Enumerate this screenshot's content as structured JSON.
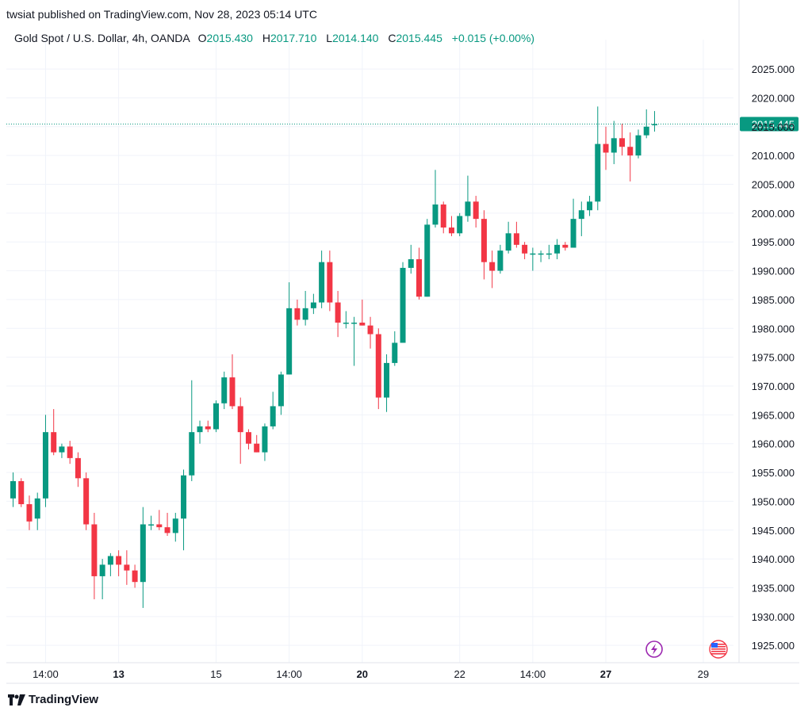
{
  "header": {
    "published": "twsiat published on TradingView.com, Nov 28, 2023 05:14 UTC"
  },
  "legend": {
    "symbol": "Gold Spot / U.S. Dollar, 4h, OANDA",
    "open_label": "O",
    "open": "2015.430",
    "high_label": "H",
    "high": "2017.710",
    "low_label": "L",
    "low": "2014.140",
    "close_label": "C",
    "close": "2015.445",
    "change": "+0.015 (+0.00%)"
  },
  "footer": {
    "brand": "TradingView"
  },
  "colors": {
    "up": "#089981",
    "down": "#f23645",
    "grid": "#f0f3fa",
    "text": "#131722",
    "price_tag": "#089981",
    "indicator_icon": "#9c27b0"
  },
  "icons": {
    "event_icon": "lightning-bolt-icon",
    "flag_icon": "us-flag-icon"
  },
  "chart_data": {
    "type": "candlestick",
    "title": "Gold Spot / U.S. Dollar, 4h, OANDA",
    "ylim": [
      1922,
      2029
    ],
    "y_ticks": [
      "2025.000",
      "2020.000",
      "2015.000",
      "2010.000",
      "2005.000",
      "2000.000",
      "1995.000",
      "1990.000",
      "1985.000",
      "1980.000",
      "1975.000",
      "1970.000",
      "1965.000",
      "1960.000",
      "1955.000",
      "1950.000",
      "1945.000",
      "1940.000",
      "1935.000",
      "1930.000",
      "1925.000"
    ],
    "x_ticks": [
      {
        "label": "14:00",
        "bar": 4,
        "bold": false
      },
      {
        "label": "13",
        "bar": 13,
        "bold": true
      },
      {
        "label": "15",
        "bar": 25,
        "bold": false
      },
      {
        "label": "14:00",
        "bar": 34,
        "bold": false
      },
      {
        "label": "20",
        "bar": 43,
        "bold": true
      },
      {
        "label": "22",
        "bar": 55,
        "bold": false
      },
      {
        "label": "14:00",
        "bar": 64,
        "bold": false
      },
      {
        "label": "27",
        "bar": 73,
        "bold": true
      },
      {
        "label": "29",
        "bar": 85,
        "bold": false
      }
    ],
    "last_price": "2015.445",
    "last_price_value": 2015.445,
    "candles": [
      [
        1950.5,
        1955.0,
        1949.0,
        1953.5
      ],
      [
        1953.5,
        1954.0,
        1949.0,
        1949.5
      ],
      [
        1949.5,
        1951.0,
        1945.0,
        1946.5
      ],
      [
        1947.0,
        1951.5,
        1945.0,
        1950.5
      ],
      [
        1950.5,
        1965.0,
        1949.0,
        1962.0
      ],
      [
        1962.0,
        1966.0,
        1958.0,
        1958.5
      ],
      [
        1958.5,
        1960.0,
        1957.5,
        1959.5
      ],
      [
        1959.5,
        1960.5,
        1956.5,
        1957.5
      ],
      [
        1957.5,
        1958.5,
        1952.5,
        1954.0
      ],
      [
        1954.0,
        1955.0,
        1945.0,
        1946.0
      ],
      [
        1946.0,
        1948.0,
        1933.0,
        1937.0
      ],
      [
        1937.0,
        1940.0,
        1933.0,
        1939.0
      ],
      [
        1939.0,
        1941.0,
        1937.0,
        1940.5
      ],
      [
        1940.5,
        1941.5,
        1937.0,
        1939.0
      ],
      [
        1939.0,
        1941.5,
        1935.5,
        1938.0
      ],
      [
        1938.0,
        1939.0,
        1935.0,
        1936.0
      ],
      [
        1936.0,
        1949.0,
        1931.5,
        1946.0
      ],
      [
        1946.0,
        1947.5,
        1945.0,
        1946.0
      ],
      [
        1946.0,
        1948.5,
        1945.0,
        1945.5
      ],
      [
        1945.5,
        1948.0,
        1944.0,
        1944.5
      ],
      [
        1944.5,
        1948.0,
        1943.0,
        1947.0
      ],
      [
        1947.0,
        1955.5,
        1941.5,
        1954.5
      ],
      [
        1954.5,
        1971.0,
        1953.5,
        1962.0
      ],
      [
        1962.0,
        1964.0,
        1960.0,
        1963.0
      ],
      [
        1963.0,
        1964.0,
        1962.0,
        1962.5
      ],
      [
        1962.5,
        1967.5,
        1962.0,
        1967.0
      ],
      [
        1967.0,
        1972.5,
        1966.0,
        1971.5
      ],
      [
        1971.5,
        1975.5,
        1966.0,
        1966.5
      ],
      [
        1966.5,
        1968.0,
        1956.5,
        1962.0
      ],
      [
        1962.0,
        1962.5,
        1959.0,
        1960.0
      ],
      [
        1960.0,
        1961.5,
        1958.5,
        1958.5
      ],
      [
        1958.5,
        1963.5,
        1957.0,
        1963.0
      ],
      [
        1963.0,
        1969.0,
        1962.5,
        1966.5
      ],
      [
        1966.5,
        1972.5,
        1965.0,
        1972.0
      ],
      [
        1972.0,
        1988.0,
        1972.0,
        1983.5
      ],
      [
        1983.5,
        1985.0,
        1980.5,
        1981.5
      ],
      [
        1981.5,
        1986.5,
        1980.5,
        1983.5
      ],
      [
        1983.5,
        1986.0,
        1982.5,
        1984.5
      ],
      [
        1984.5,
        1993.5,
        1983.5,
        1991.5
      ],
      [
        1991.5,
        1993.5,
        1983.0,
        1984.5
      ],
      [
        1984.5,
        1986.5,
        1978.5,
        1981.0
      ],
      [
        1981.0,
        1983.0,
        1980.0,
        1981.0
      ],
      [
        1981.0,
        1982.0,
        1973.5,
        1981.0
      ],
      [
        1981.0,
        1985.0,
        1980.5,
        1980.5
      ],
      [
        1980.5,
        1982.0,
        1976.5,
        1979.0
      ],
      [
        1979.0,
        1980.0,
        1966.0,
        1968.0
      ],
      [
        1968.0,
        1975.5,
        1965.5,
        1974.0
      ],
      [
        1974.0,
        1979.5,
        1973.5,
        1977.5
      ],
      [
        1977.5,
        1991.5,
        1977.5,
        1990.5
      ],
      [
        1990.5,
        1994.5,
        1989.5,
        1992.0
      ],
      [
        1992.0,
        1994.0,
        1985.0,
        1985.5
      ],
      [
        1985.5,
        1999.0,
        1985.5,
        1998.0
      ],
      [
        1998.0,
        2007.5,
        1997.5,
        2001.5
      ],
      [
        2001.5,
        2002.0,
        1996.5,
        1997.5
      ],
      [
        1997.5,
        1999.5,
        1996.0,
        1996.5
      ],
      [
        1996.5,
        2000.0,
        1996.0,
        1999.5
      ],
      [
        1999.5,
        2006.5,
        1998.5,
        2002.0
      ],
      [
        2002.0,
        2003.0,
        1997.5,
        1999.0
      ],
      [
        1999.0,
        2000.5,
        1988.5,
        1991.5
      ],
      [
        1991.5,
        1993.5,
        1987.0,
        1990.0
      ],
      [
        1990.0,
        1994.5,
        1989.5,
        1993.5
      ],
      [
        1993.5,
        1998.5,
        1993.0,
        1996.5
      ],
      [
        1996.5,
        1998.5,
        1994.0,
        1994.5
      ],
      [
        1994.5,
        1995.0,
        1992.0,
        1993.0
      ],
      [
        1993.0,
        1994.0,
        1990.0,
        1993.0
      ],
      [
        1993.0,
        1993.5,
        1991.5,
        1993.0
      ],
      [
        1993.0,
        1994.5,
        1992.0,
        1993.0
      ],
      [
        1993.0,
        1995.5,
        1992.0,
        1994.5
      ],
      [
        1994.5,
        1995.0,
        1993.5,
        1994.0
      ],
      [
        1994.0,
        2002.5,
        1994.0,
        1999.0
      ],
      [
        1999.0,
        2002.0,
        1996.0,
        2000.5
      ],
      [
        2000.5,
        2003.0,
        1999.5,
        2002.0
      ],
      [
        2002.0,
        2018.5,
        2000.5,
        2012.0
      ],
      [
        2012.0,
        2015.0,
        2007.5,
        2010.5
      ],
      [
        2010.5,
        2016.0,
        2008.5,
        2013.0
      ],
      [
        2013.0,
        2015.5,
        2010.0,
        2011.5
      ],
      [
        2011.5,
        2014.0,
        2005.5,
        2010.0
      ],
      [
        2010.0,
        2014.5,
        2009.5,
        2013.5
      ],
      [
        2013.5,
        2018.0,
        2013.0,
        2015.0
      ],
      [
        2015.43,
        2017.71,
        2014.14,
        2015.445
      ]
    ]
  }
}
